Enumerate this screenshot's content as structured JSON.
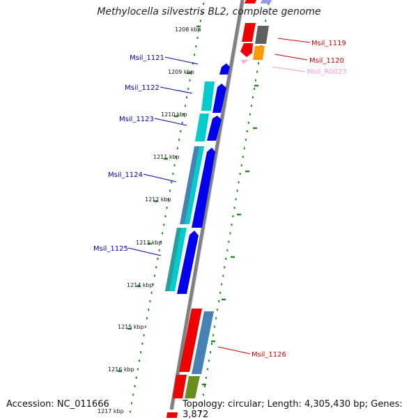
{
  "title": "Methylocella silvestris BL2, complete genome",
  "accession": "Accession: NC_011666",
  "summary": "Topology: circular; Length: 4,305,430 bp; Genes: 3,872",
  "colors": {
    "backbone": "#808080",
    "forward_cds": "#0000ee",
    "cds_cyan": "#00cccc",
    "cds_steel": "#4682b4",
    "reverse_cds": "#ee0000",
    "gray_gene": "#606060",
    "orange_gene": "#ff9900",
    "olive_gene": "#6b8e23",
    "rna": "#ffaadd",
    "lavender": "#9999ee",
    "tick": "#228b22",
    "label_blue": "#0000aa",
    "label_red": "#cc0000",
    "label_pink": "#ff99cc"
  },
  "kbp_labels": [
    "1208 kbp",
    "1209 kbp",
    "1210 kbp",
    "1211 kbp",
    "1212 kbp",
    "1213 kbp",
    "1214 kbp",
    "1215 kbp",
    "1216 kbp",
    "1217 kbp"
  ],
  "gene_labels": {
    "msil_1121": "Msil_1121",
    "msil_1122": "Msil_1122",
    "msil_1123": "Msil_1123",
    "msil_1124": "Msil_1124",
    "msil_1125": "Msil_1125",
    "msil_1119": "Msil_1119",
    "msil_1120": "Msil_1120",
    "msil_r0023": "Msil_R0023",
    "msil_1126": "Msil_1126"
  }
}
